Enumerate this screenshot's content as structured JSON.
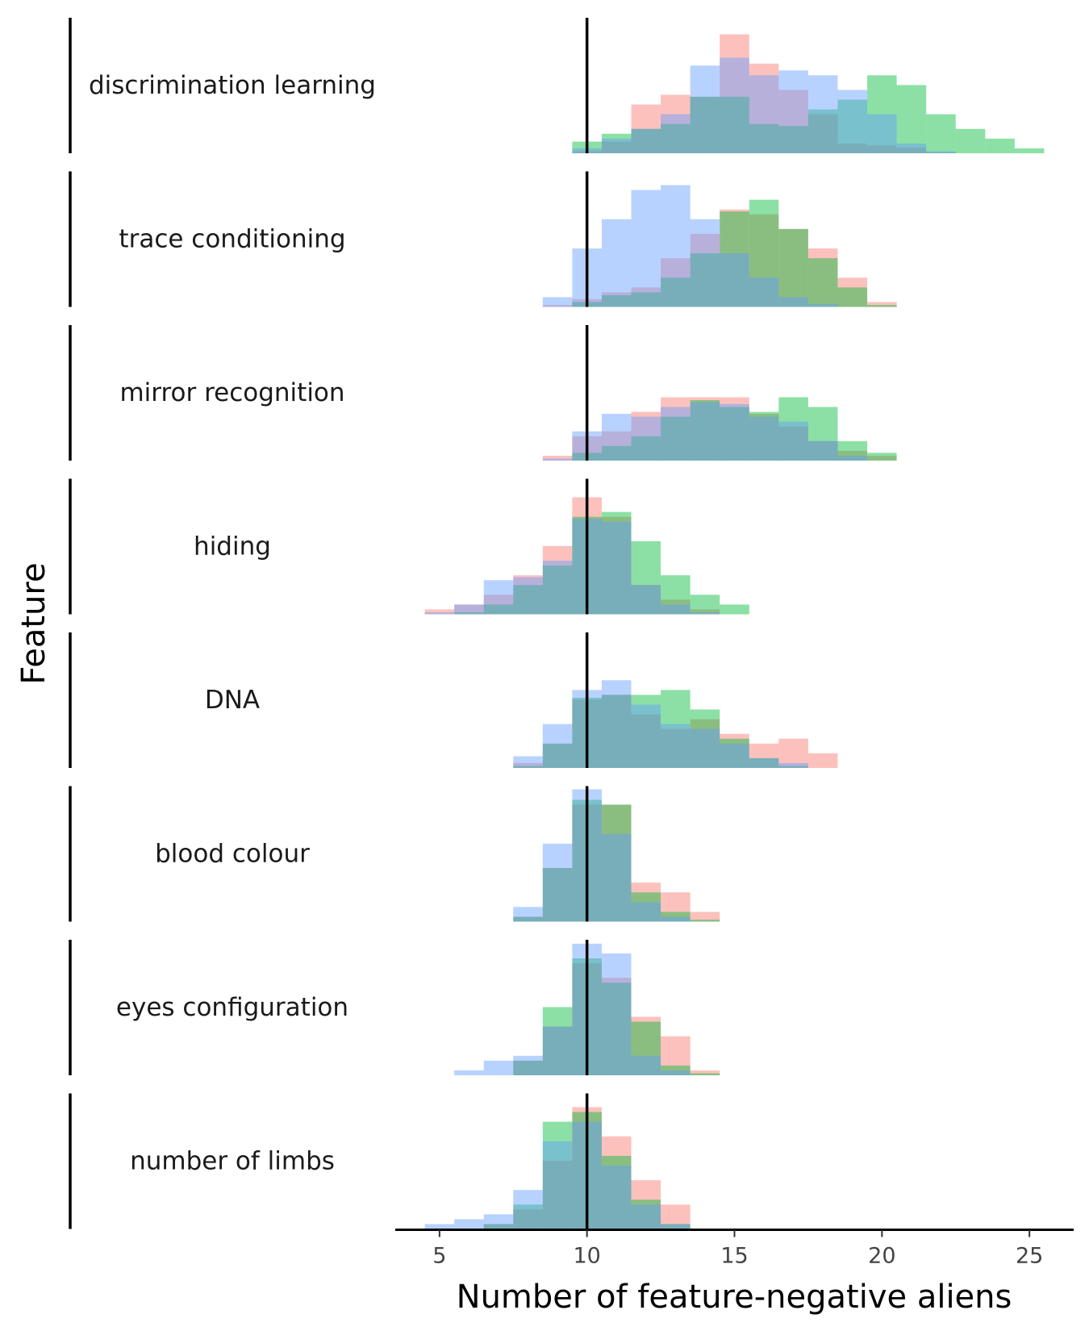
{
  "chart_data": {
    "type": "histogram",
    "xlabel": "Number of feature-negative aliens",
    "ylabel": "Feature",
    "xlim": [
      3.5,
      26.5
    ],
    "xticks": [
      5,
      10,
      15,
      20,
      25
    ],
    "reference_line_x": 10,
    "bin_width": 1,
    "grid": false,
    "legend": "none",
    "series_colors": [
      "#F8766D",
      "#00BA38",
      "#619CFF"
    ],
    "panels": [
      {
        "label": "discrimination learning",
        "max_count": 120,
        "series": [
          {
            "bins": [
              [
                10,
                2
              ],
              [
                11,
                12
              ],
              [
                12,
                50
              ],
              [
                13,
                60
              ],
              [
                14,
                58
              ],
              [
                15,
                122
              ],
              [
                16,
                92
              ],
              [
                17,
                65
              ],
              [
                18,
                40
              ],
              [
                19,
                10
              ],
              [
                20,
                8
              ],
              [
                21,
                6
              ],
              [
                22,
                1
              ]
            ]
          },
          {
            "bins": [
              [
                10,
                12
              ],
              [
                11,
                20
              ],
              [
                12,
                25
              ],
              [
                13,
                30
              ],
              [
                14,
                58
              ],
              [
                15,
                58
              ],
              [
                16,
                30
              ],
              [
                17,
                28
              ],
              [
                18,
                45
              ],
              [
                19,
                55
              ],
              [
                20,
                80
              ],
              [
                21,
                70
              ],
              [
                22,
                40
              ],
              [
                23,
                25
              ],
              [
                24,
                15
              ],
              [
                25,
                5
              ]
            ]
          },
          {
            "bins": [
              [
                10,
                5
              ],
              [
                11,
                15
              ],
              [
                12,
                25
              ],
              [
                13,
                40
              ],
              [
                14,
                90
              ],
              [
                15,
                98
              ],
              [
                16,
                80
              ],
              [
                17,
                85
              ],
              [
                18,
                80
              ],
              [
                19,
                65
              ],
              [
                20,
                40
              ],
              [
                21,
                10
              ],
              [
                22,
                2
              ]
            ]
          }
        ]
      },
      {
        "label": "trace conditioning",
        "max_count": 120,
        "series": [
          {
            "bins": [
              [
                9,
                2
              ],
              [
                10,
                8
              ],
              [
                11,
                15
              ],
              [
                12,
                20
              ],
              [
                13,
                50
              ],
              [
                14,
                75
              ],
              [
                15,
                100
              ],
              [
                16,
                95
              ],
              [
                17,
                80
              ],
              [
                18,
                60
              ],
              [
                19,
                30
              ],
              [
                20,
                5
              ]
            ]
          },
          {
            "bins": [
              [
                10,
                5
              ],
              [
                11,
                12
              ],
              [
                12,
                15
              ],
              [
                13,
                30
              ],
              [
                14,
                55
              ],
              [
                15,
                98
              ],
              [
                16,
                110
              ],
              [
                17,
                80
              ],
              [
                18,
                50
              ],
              [
                19,
                20
              ],
              [
                20,
                2
              ]
            ]
          },
          {
            "bins": [
              [
                9,
                10
              ],
              [
                10,
                60
              ],
              [
                11,
                90
              ],
              [
                12,
                120
              ],
              [
                13,
                125
              ],
              [
                14,
                90
              ],
              [
                15,
                55
              ],
              [
                16,
                30
              ],
              [
                17,
                10
              ],
              [
                18,
                3
              ]
            ]
          }
        ]
      },
      {
        "label": "mirror recognition",
        "max_count": 120,
        "series": [
          {
            "bins": [
              [
                9,
                5
              ],
              [
                10,
                25
              ],
              [
                11,
                30
              ],
              [
                12,
                50
              ],
              [
                13,
                65
              ],
              [
                14,
                65
              ],
              [
                15,
                65
              ],
              [
                16,
                48
              ],
              [
                17,
                35
              ],
              [
                18,
                20
              ],
              [
                19,
                10
              ],
              [
                20,
                5
              ]
            ]
          },
          {
            "bins": [
              [
                10,
                8
              ],
              [
                11,
                15
              ],
              [
                12,
                25
              ],
              [
                13,
                45
              ],
              [
                14,
                62
              ],
              [
                15,
                55
              ],
              [
                16,
                50
              ],
              [
                17,
                65
              ],
              [
                18,
                55
              ],
              [
                19,
                20
              ],
              [
                20,
                8
              ]
            ]
          },
          {
            "bins": [
              [
                9,
                2
              ],
              [
                10,
                30
              ],
              [
                11,
                48
              ],
              [
                12,
                45
              ],
              [
                13,
                55
              ],
              [
                14,
                60
              ],
              [
                15,
                58
              ],
              [
                16,
                45
              ],
              [
                17,
                40
              ],
              [
                18,
                20
              ],
              [
                19,
                5
              ]
            ]
          }
        ]
      },
      {
        "label": "hiding",
        "max_count": 120,
        "series": [
          {
            "bins": [
              [
                5,
                5
              ],
              [
                6,
                10
              ],
              [
                7,
                20
              ],
              [
                8,
                40
              ],
              [
                9,
                70
              ],
              [
                10,
                120
              ],
              [
                11,
                100
              ],
              [
                12,
                30
              ],
              [
                13,
                15
              ],
              [
                14,
                5
              ]
            ]
          },
          {
            "bins": [
              [
                6,
                2
              ],
              [
                7,
                10
              ],
              [
                8,
                30
              ],
              [
                9,
                50
              ],
              [
                10,
                100
              ],
              [
                11,
                105
              ],
              [
                12,
                75
              ],
              [
                13,
                40
              ],
              [
                14,
                20
              ],
              [
                15,
                10
              ]
            ]
          },
          {
            "bins": [
              [
                5,
                2
              ],
              [
                6,
                10
              ],
              [
                7,
                35
              ],
              [
                8,
                38
              ],
              [
                9,
                55
              ],
              [
                10,
                98
              ],
              [
                11,
                95
              ],
              [
                12,
                30
              ],
              [
                13,
                10
              ],
              [
                14,
                2
              ]
            ]
          }
        ]
      },
      {
        "label": "DNA",
        "max_count": 120,
        "series": [
          {
            "bins": [
              [
                8,
                5
              ],
              [
                9,
                25
              ],
              [
                10,
                70
              ],
              [
                11,
                75
              ],
              [
                12,
                55
              ],
              [
                13,
                40
              ],
              [
                14,
                50
              ],
              [
                15,
                35
              ],
              [
                16,
                25
              ],
              [
                17,
                30
              ],
              [
                18,
                15
              ]
            ]
          },
          {
            "bins": [
              [
                8,
                2
              ],
              [
                9,
                25
              ],
              [
                10,
                72
              ],
              [
                11,
                75
              ],
              [
                12,
                75
              ],
              [
                13,
                80
              ],
              [
                14,
                60
              ],
              [
                15,
                30
              ],
              [
                16,
                10
              ],
              [
                17,
                2
              ]
            ]
          },
          {
            "bins": [
              [
                8,
                12
              ],
              [
                9,
                45
              ],
              [
                10,
                80
              ],
              [
                11,
                90
              ],
              [
                12,
                65
              ],
              [
                13,
                45
              ],
              [
                14,
                40
              ],
              [
                15,
                25
              ],
              [
                16,
                10
              ],
              [
                17,
                5
              ]
            ]
          }
        ]
      },
      {
        "label": "blood colour",
        "max_count": 120,
        "series": [
          {
            "bins": [
              [
                8,
                5
              ],
              [
                9,
                55
              ],
              [
                10,
                120
              ],
              [
                11,
                120
              ],
              [
                12,
                40
              ],
              [
                13,
                30
              ],
              [
                14,
                10
              ]
            ]
          },
          {
            "bins": [
              [
                8,
                5
              ],
              [
                9,
                55
              ],
              [
                10,
                125
              ],
              [
                11,
                120
              ],
              [
                12,
                30
              ],
              [
                13,
                10
              ],
              [
                14,
                2
              ]
            ]
          },
          {
            "bins": [
              [
                8,
                15
              ],
              [
                9,
                80
              ],
              [
                10,
                150
              ],
              [
                11,
                90
              ],
              [
                12,
                20
              ],
              [
                13,
                5
              ]
            ]
          }
        ]
      },
      {
        "label": "eyes configuration",
        "max_count": 120,
        "series": [
          {
            "bins": [
              [
                8,
                15
              ],
              [
                9,
                50
              ],
              [
                10,
                115
              ],
              [
                11,
                100
              ],
              [
                12,
                60
              ],
              [
                13,
                40
              ],
              [
                14,
                5
              ]
            ]
          },
          {
            "bins": [
              [
                8,
                15
              ],
              [
                9,
                70
              ],
              [
                10,
                120
              ],
              [
                11,
                95
              ],
              [
                12,
                55
              ],
              [
                13,
                10
              ],
              [
                14,
                2
              ]
            ]
          },
          {
            "bins": [
              [
                6,
                5
              ],
              [
                7,
                15
              ],
              [
                8,
                20
              ],
              [
                9,
                50
              ],
              [
                10,
                135
              ],
              [
                11,
                125
              ],
              [
                12,
                20
              ],
              [
                13,
                5
              ]
            ]
          }
        ]
      },
      {
        "label": "number of limbs",
        "max_count": 120,
        "series": [
          {
            "bins": [
              [
                7,
                5
              ],
              [
                8,
                20
              ],
              [
                9,
                70
              ],
              [
                10,
                125
              ],
              [
                11,
                95
              ],
              [
                12,
                50
              ],
              [
                13,
                25
              ]
            ]
          },
          {
            "bins": [
              [
                7,
                5
              ],
              [
                8,
                25
              ],
              [
                9,
                110
              ],
              [
                10,
                120
              ],
              [
                11,
                75
              ],
              [
                12,
                30
              ],
              [
                13,
                5
              ]
            ]
          },
          {
            "bins": [
              [
                5,
                5
              ],
              [
                6,
                10
              ],
              [
                7,
                15
              ],
              [
                8,
                40
              ],
              [
                9,
                90
              ],
              [
                10,
                110
              ],
              [
                11,
                65
              ],
              [
                12,
                25
              ],
              [
                13,
                5
              ]
            ]
          }
        ]
      }
    ]
  }
}
